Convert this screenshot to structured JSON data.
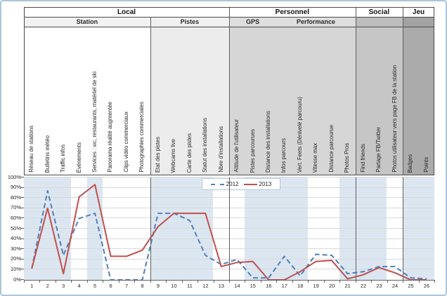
{
  "window": {
    "border_color": "#abc6de",
    "background": "#ffffff"
  },
  "chart_data": {
    "type": "line",
    "title": "",
    "x_labels": [
      "1",
      "2",
      "3",
      "4",
      "5",
      "6",
      "7",
      "8",
      "9",
      "10",
      "11",
      "12",
      "13",
      "14",
      "15",
      "16",
      "17",
      "18",
      "19",
      "20",
      "21",
      "22",
      "23",
      "24",
      "25",
      "26"
    ],
    "categories": [
      "Réseau de stations",
      "Bulletins météo",
      "Traffic infos",
      "Événements",
      "Services : wc, restaurants, matériel de ski",
      "Panorama réalité augmentée",
      "Clips vidéo commerciaux",
      "Photographies commerciales",
      "Etat des pistes",
      "Webcams live",
      "Carte des pistes",
      "Statut des installations",
      "Nbre d'installations",
      "Altitude de l'utilisateur",
      "Pistes parcourues",
      "Distance des installations",
      "Infos parcours",
      "Vert. Feets (Dénivelé parcouru)",
      "Vitesse max",
      "Distance parcourue",
      "Photos Pros",
      "Find friends",
      "Partage FB/Twitter",
      "Photos utilisateur vers page FB de la station",
      "Badges",
      "Points"
    ],
    "category_groups": [
      {
        "label": "Local",
        "span": 13,
        "subgroups": [
          {
            "label": "Station",
            "span": 8,
            "sub_bg": "#f2f2f2",
            "label_bg": "#ffffff"
          },
          {
            "label": "Pistes",
            "span": 5,
            "sub_bg": "#f0f0f0",
            "label_bg": "#ececec"
          }
        ]
      },
      {
        "label": "Personnel",
        "span": 8,
        "subgroups": [
          {
            "label": "GPS",
            "span": 3,
            "sub_bg": "#dedede",
            "label_bg": "#d6d6d6"
          },
          {
            "label": "Performance",
            "span": 5,
            "sub_bg": "#dedede",
            "label_bg": "#d6d6d6"
          }
        ]
      },
      {
        "label": "Social",
        "span": 3,
        "subgroups": [
          {
            "label": "",
            "span": 3,
            "sub_bg": "#bdbdbd",
            "label_bg": "#c6c6c6"
          }
        ]
      },
      {
        "label": "Jeu",
        "span": 2,
        "subgroups": [
          {
            "label": "",
            "span": 2,
            "sub_bg": "#a3a3a3",
            "label_bg": "#ababab"
          }
        ]
      }
    ],
    "series": [
      {
        "name": "2012",
        "color": "#4f81bd",
        "dash": true,
        "values": [
          11,
          87,
          24,
          60,
          65,
          0,
          0,
          0,
          65,
          65,
          58,
          24,
          15,
          20,
          2,
          2,
          23,
          4,
          25,
          24,
          6,
          8,
          13,
          13,
          2,
          1
        ]
      },
      {
        "name": "2013",
        "color": "#c0504d",
        "dash": false,
        "values": [
          11,
          70,
          6,
          81,
          93,
          23,
          23,
          29,
          52,
          65,
          65,
          65,
          13,
          17,
          18,
          0,
          0,
          8,
          18,
          19,
          1,
          5,
          12,
          7,
          0,
          0
        ]
      }
    ],
    "ylim": [
      0,
      100
    ],
    "y_tick_labels": [
      "0%",
      "10%",
      "20%",
      "30%",
      "40%",
      "50%",
      "60%",
      "70%",
      "80%",
      "90%",
      "100%"
    ],
    "grid": true,
    "legend_position": "top-center",
    "shaded_columns": [
      1,
      2,
      3,
      5,
      9,
      10,
      11,
      12,
      15,
      16,
      17,
      18,
      21,
      22,
      23,
      25,
      26
    ],
    "section_lines_after_column": [
      8,
      13,
      21,
      24
    ],
    "colors": {
      "band": "#dce6f1",
      "grid": "#d9d9d9",
      "axis": "#5e5e5e",
      "section_line": "#5e5e5e",
      "table_border": "#4b4b4b",
      "legend_border": "#b3c8de",
      "text": "#262626"
    }
  }
}
